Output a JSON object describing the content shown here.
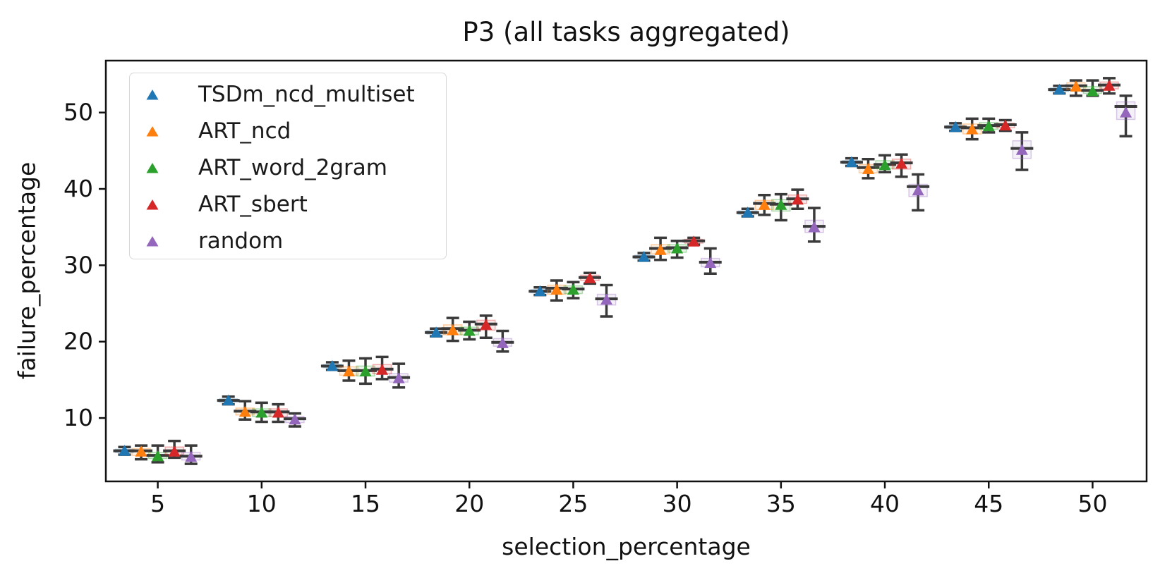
{
  "chart_data": {
    "type": "boxplot",
    "subtype": "grouped boxplots with triangle mean markers and whiskers",
    "title": "P3 (all tasks aggregated)",
    "xlabel": "selection_percentage",
    "ylabel": "failure_percentage",
    "x": [
      5,
      10,
      15,
      20,
      25,
      30,
      35,
      40,
      45,
      50
    ],
    "x_tick_labels": [
      "5",
      "10",
      "15",
      "20",
      "25",
      "30",
      "35",
      "40",
      "45",
      "50"
    ],
    "y_ticks": [
      10,
      20,
      30,
      40,
      50
    ],
    "y_tick_labels": [
      "10",
      "20",
      "30",
      "40",
      "50"
    ],
    "xlim": [
      2.5,
      52.6
    ],
    "ylim": [
      1.7,
      56.8
    ],
    "grid": false,
    "legend_position": "upper left",
    "marker": "triangle_up",
    "dodge_offsets": [
      -1.6,
      -0.8,
      0,
      0.8,
      1.6
    ],
    "whisker_color": "#3a3a3a",
    "axis_color": "#111111",
    "series": [
      {
        "name": "TSDm_ncd_multiset",
        "color": "#1f77b4",
        "mean": [
          5.7,
          12.3,
          16.8,
          21.2,
          26.6,
          31.1,
          36.9,
          43.5,
          48.1,
          53.0
        ],
        "median": [
          5.7,
          12.3,
          16.8,
          21.2,
          26.6,
          31.1,
          36.9,
          43.5,
          48.1,
          53.0
        ],
        "q1": [
          5.5,
          12.1,
          16.6,
          21.0,
          26.4,
          30.9,
          36.7,
          43.3,
          47.9,
          52.8
        ],
        "q3": [
          5.9,
          12.5,
          17.0,
          21.4,
          26.8,
          31.3,
          37.1,
          43.7,
          48.3,
          53.2
        ],
        "whisker_lo": [
          5.2,
          11.8,
          16.3,
          20.7,
          26.1,
          30.6,
          36.4,
          43.0,
          47.6,
          52.5
        ],
        "whisker_hi": [
          6.2,
          12.8,
          17.3,
          21.7,
          27.1,
          31.6,
          37.4,
          44.0,
          48.6,
          53.5
        ]
      },
      {
        "name": "ART_ncd",
        "color": "#ff7f0e",
        "mean": [
          5.6,
          10.8,
          16.1,
          21.5,
          26.8,
          32.0,
          37.9,
          42.6,
          47.8,
          53.4
        ],
        "median": [
          5.7,
          10.9,
          16.2,
          21.7,
          27.0,
          32.2,
          38.1,
          42.8,
          48.0,
          53.5
        ],
        "q1": [
          5.1,
          10.4,
          15.6,
          20.9,
          26.2,
          31.5,
          37.3,
          42.1,
          47.2,
          53.0
        ],
        "q3": [
          6.0,
          11.3,
          16.7,
          22.2,
          27.4,
          32.7,
          38.5,
          43.2,
          48.5,
          53.9
        ],
        "whisker_lo": [
          4.6,
          9.8,
          14.9,
          20.1,
          25.4,
          30.7,
          36.6,
          41.4,
          46.5,
          52.2
        ],
        "whisker_hi": [
          6.4,
          12.2,
          17.5,
          23.1,
          28.0,
          33.6,
          39.2,
          43.9,
          49.2,
          54.2
        ]
      },
      {
        "name": "ART_word_2gram",
        "color": "#2ca02c",
        "mean": [
          5.0,
          10.7,
          16.1,
          21.4,
          26.8,
          32.2,
          37.9,
          43.1,
          48.2,
          52.8
        ],
        "median": [
          5.1,
          10.8,
          16.2,
          21.5,
          26.9,
          32.3,
          38.0,
          43.2,
          48.3,
          52.9
        ],
        "q1": [
          4.7,
          10.2,
          15.5,
          20.9,
          26.3,
          31.7,
          37.1,
          42.7,
          47.8,
          52.5
        ],
        "q3": [
          5.5,
          11.2,
          16.8,
          21.9,
          27.3,
          32.7,
          38.6,
          43.7,
          48.7,
          53.4
        ],
        "whisker_lo": [
          4.2,
          9.5,
          14.5,
          20.3,
          25.7,
          31.0,
          35.9,
          42.2,
          47.4,
          52.2
        ],
        "whisker_hi": [
          6.4,
          12.0,
          17.8,
          22.6,
          27.8,
          33.2,
          39.3,
          44.4,
          49.2,
          54.2
        ]
      },
      {
        "name": "ART_sbert",
        "color": "#d62728",
        "mean": [
          5.6,
          10.7,
          16.3,
          22.2,
          28.3,
          33.1,
          38.6,
          43.3,
          48.3,
          53.5
        ],
        "median": [
          5.7,
          10.8,
          16.4,
          22.3,
          28.4,
          33.2,
          38.7,
          43.4,
          48.4,
          53.6
        ],
        "q1": [
          5.2,
          10.2,
          15.8,
          21.5,
          28.0,
          32.9,
          38.1,
          42.6,
          48.0,
          53.1
        ],
        "q3": [
          6.2,
          11.2,
          17.0,
          22.8,
          28.7,
          33.4,
          39.2,
          43.9,
          48.6,
          54.0
        ],
        "whisker_lo": [
          4.8,
          9.5,
          15.1,
          20.5,
          27.6,
          32.7,
          37.4,
          41.6,
          47.6,
          52.5
        ],
        "whisker_hi": [
          7.0,
          11.8,
          18.0,
          23.4,
          29.0,
          33.6,
          39.9,
          44.5,
          49.0,
          54.5
        ]
      },
      {
        "name": "random",
        "color": "#9467bd",
        "mean": [
          4.9,
          9.8,
          15.2,
          19.8,
          25.5,
          30.3,
          35.0,
          39.8,
          45.1,
          50.0
        ],
        "median": [
          5.0,
          9.9,
          15.3,
          19.9,
          25.6,
          30.4,
          35.1,
          40.3,
          45.3,
          50.8
        ],
        "q1": [
          4.5,
          9.4,
          14.7,
          19.4,
          24.8,
          29.8,
          34.3,
          39.0,
          44.0,
          49.1
        ],
        "q3": [
          5.5,
          10.2,
          15.8,
          20.4,
          26.2,
          30.9,
          35.9,
          40.6,
          46.3,
          51.4
        ],
        "whisker_lo": [
          4.0,
          8.9,
          14.0,
          18.7,
          23.3,
          28.9,
          33.1,
          37.2,
          42.5,
          46.9
        ],
        "whisker_hi": [
          6.4,
          10.6,
          17.1,
          21.4,
          27.4,
          32.2,
          37.5,
          41.9,
          47.4,
          52.2
        ]
      }
    ]
  }
}
